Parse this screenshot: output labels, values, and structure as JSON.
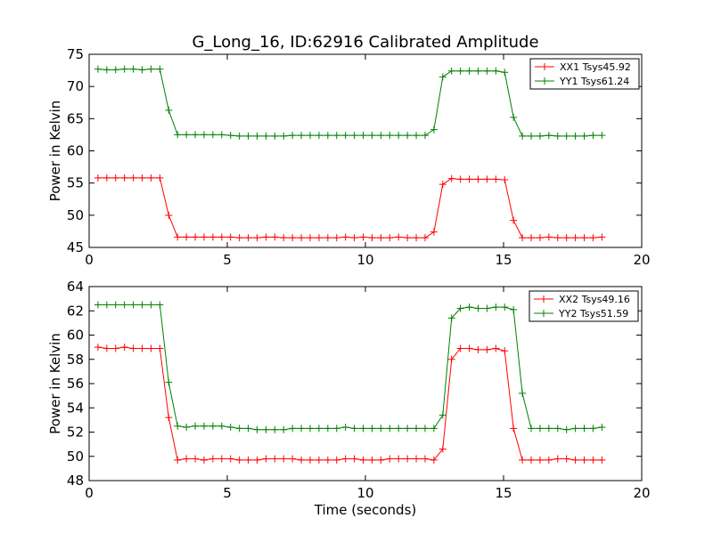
{
  "figure": {
    "title": "G_Long_16, ID:62916 Calibrated Amplitude",
    "xlabel": "Time (seconds)"
  },
  "colors": {
    "series_a": "#ff0000",
    "series_b": "#008000",
    "axes": "#000000",
    "background": "#ffffff"
  },
  "chart_data": [
    {
      "type": "line",
      "title": "G_Long_16, ID:62916 Calibrated Amplitude",
      "xlabel": "",
      "ylabel": "Power in Kelvin",
      "xlim": [
        0,
        20
      ],
      "ylim": [
        45,
        75
      ],
      "xticks": [
        "0",
        "5",
        "10",
        "15",
        "20"
      ],
      "yticks": [
        "45",
        "50",
        "55",
        "60",
        "65",
        "70",
        "75"
      ],
      "grid": false,
      "legend_position": "top-right",
      "x": [
        0.32,
        0.64,
        0.96,
        1.28,
        1.6,
        1.92,
        2.24,
        2.56,
        2.88,
        3.2,
        3.52,
        3.84,
        4.16,
        4.48,
        4.8,
        5.12,
        5.44,
        5.76,
        6.08,
        6.4,
        6.72,
        7.04,
        7.36,
        7.68,
        8.0,
        8.32,
        8.64,
        8.96,
        9.28,
        9.6,
        9.92,
        10.24,
        10.56,
        10.88,
        11.2,
        11.52,
        11.84,
        12.16,
        12.48,
        12.8,
        13.12,
        13.44,
        13.76,
        14.08,
        14.4,
        14.72,
        15.04,
        15.36,
        15.68,
        16.0,
        16.32,
        16.64,
        16.96,
        17.28,
        17.6,
        17.92,
        18.24,
        18.56
      ],
      "series": [
        {
          "name": "XX1 Tsys45.92",
          "color": "#ff0000",
          "values": [
            55.8,
            55.8,
            55.8,
            55.8,
            55.8,
            55.8,
            55.8,
            55.8,
            50.0,
            46.6,
            46.6,
            46.6,
            46.6,
            46.6,
            46.6,
            46.6,
            46.5,
            46.5,
            46.5,
            46.6,
            46.6,
            46.5,
            46.5,
            46.5,
            46.5,
            46.5,
            46.5,
            46.5,
            46.6,
            46.5,
            46.6,
            46.5,
            46.5,
            46.5,
            46.6,
            46.5,
            46.5,
            46.5,
            47.4,
            54.8,
            55.7,
            55.6,
            55.6,
            55.6,
            55.6,
            55.6,
            55.5,
            49.2,
            46.5,
            46.5,
            46.5,
            46.6,
            46.5,
            46.5,
            46.5,
            46.5,
            46.5,
            46.6
          ]
        },
        {
          "name": "YY1 Tsys61.24",
          "color": "#008000",
          "values": [
            72.7,
            72.6,
            72.6,
            72.7,
            72.7,
            72.6,
            72.7,
            72.7,
            66.3,
            62.5,
            62.5,
            62.5,
            62.5,
            62.5,
            62.5,
            62.4,
            62.3,
            62.3,
            62.3,
            62.3,
            62.3,
            62.3,
            62.4,
            62.4,
            62.4,
            62.4,
            62.4,
            62.4,
            62.4,
            62.4,
            62.4,
            62.4,
            62.4,
            62.4,
            62.4,
            62.4,
            62.4,
            62.4,
            63.3,
            71.5,
            72.4,
            72.4,
            72.4,
            72.4,
            72.4,
            72.4,
            72.2,
            65.2,
            62.3,
            62.3,
            62.3,
            62.4,
            62.3,
            62.3,
            62.3,
            62.3,
            62.4,
            62.4
          ]
        }
      ]
    },
    {
      "type": "line",
      "title": "",
      "xlabel": "Time (seconds)",
      "ylabel": "Power in Kelvin",
      "xlim": [
        0,
        20
      ],
      "ylim": [
        48,
        64
      ],
      "xticks": [
        "0",
        "5",
        "10",
        "15",
        "20"
      ],
      "yticks": [
        "48",
        "50",
        "52",
        "54",
        "56",
        "58",
        "60",
        "62",
        "64"
      ],
      "grid": false,
      "legend_position": "top-right",
      "x": [
        0.32,
        0.64,
        0.96,
        1.28,
        1.6,
        1.92,
        2.24,
        2.56,
        2.88,
        3.2,
        3.52,
        3.84,
        4.16,
        4.48,
        4.8,
        5.12,
        5.44,
        5.76,
        6.08,
        6.4,
        6.72,
        7.04,
        7.36,
        7.68,
        8.0,
        8.32,
        8.64,
        8.96,
        9.28,
        9.6,
        9.92,
        10.24,
        10.56,
        10.88,
        11.2,
        11.52,
        11.84,
        12.16,
        12.48,
        12.8,
        13.12,
        13.44,
        13.76,
        14.08,
        14.4,
        14.72,
        15.04,
        15.36,
        15.68,
        16.0,
        16.32,
        16.64,
        16.96,
        17.28,
        17.6,
        17.92,
        18.24,
        18.56
      ],
      "series": [
        {
          "name": "XX2 Tsys49.16",
          "color": "#ff0000",
          "values": [
            59.0,
            58.9,
            58.9,
            59.0,
            58.9,
            58.9,
            58.9,
            58.9,
            53.2,
            49.7,
            49.8,
            49.8,
            49.7,
            49.8,
            49.8,
            49.8,
            49.7,
            49.7,
            49.7,
            49.8,
            49.8,
            49.8,
            49.8,
            49.7,
            49.7,
            49.7,
            49.7,
            49.7,
            49.8,
            49.8,
            49.7,
            49.7,
            49.7,
            49.8,
            49.8,
            49.8,
            49.8,
            49.8,
            49.7,
            50.6,
            58.0,
            58.9,
            58.9,
            58.8,
            58.8,
            58.9,
            58.7,
            52.3,
            49.7,
            49.7,
            49.7,
            49.7,
            49.8,
            49.8,
            49.7,
            49.7,
            49.7,
            49.7
          ]
        },
        {
          "name": "YY2 Tsys51.59",
          "color": "#008000",
          "values": [
            62.5,
            62.5,
            62.5,
            62.5,
            62.5,
            62.5,
            62.5,
            62.5,
            56.1,
            52.5,
            52.4,
            52.5,
            52.5,
            52.5,
            52.5,
            52.4,
            52.3,
            52.3,
            52.2,
            52.2,
            52.2,
            52.2,
            52.3,
            52.3,
            52.3,
            52.3,
            52.3,
            52.3,
            52.4,
            52.3,
            52.3,
            52.3,
            52.3,
            52.3,
            52.3,
            52.3,
            52.3,
            52.3,
            52.3,
            53.4,
            61.4,
            62.2,
            62.3,
            62.2,
            62.2,
            62.3,
            62.3,
            62.1,
            55.2,
            52.3,
            52.3,
            52.3,
            52.3,
            52.2,
            52.3,
            52.3,
            52.3,
            52.4
          ]
        }
      ]
    }
  ]
}
